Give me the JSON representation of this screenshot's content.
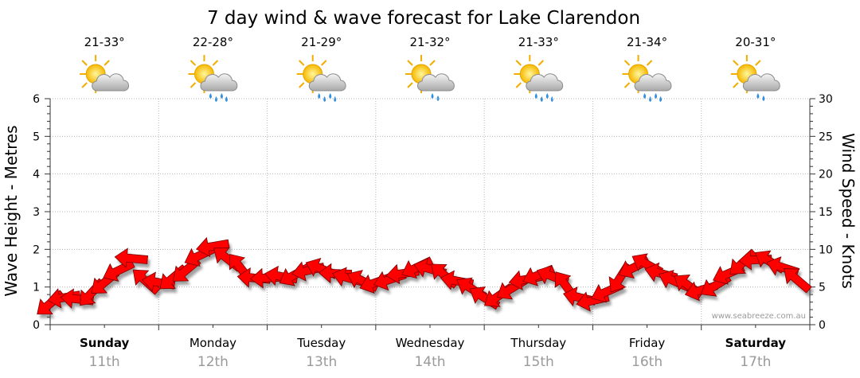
{
  "chart_data": {
    "type": "line",
    "title": "7 day wind & wave forecast for Lake Clarendon",
    "ylabel": "Wave Height - Metres",
    "ylabel_right": "Wind Speed - Knots",
    "ylim": [
      0,
      6
    ],
    "ylim_right": [
      0,
      30
    ],
    "yticks": [
      "0",
      "1",
      "2",
      "3",
      "4",
      "5",
      "6"
    ],
    "yticks_right": [
      "0",
      "5",
      "10",
      "15",
      "20",
      "25",
      "30"
    ],
    "grid": true,
    "credit": "www.seabreeze.com.au",
    "days": [
      {
        "name": "Sunday",
        "date": "11th",
        "temp": "21-33°",
        "bold": true,
        "icon": "sun-cloud-icon"
      },
      {
        "name": "Monday",
        "date": "12th",
        "temp": "22-28°",
        "bold": false,
        "icon": "sun-cloud-rain-icon"
      },
      {
        "name": "Tuesday",
        "date": "13th",
        "temp": "21-29°",
        "bold": false,
        "icon": "sun-cloud-rain-icon"
      },
      {
        "name": "Wednesday",
        "date": "14th",
        "temp": "21-32°",
        "bold": false,
        "icon": "sun-cloud-light-rain-icon"
      },
      {
        "name": "Thursday",
        "date": "15th",
        "temp": "21-33°",
        "bold": false,
        "icon": "sun-cloud-rain-icon"
      },
      {
        "name": "Friday",
        "date": "16th",
        "temp": "21-34°",
        "bold": false,
        "icon": "sun-cloud-rain-icon"
      },
      {
        "name": "Saturday",
        "date": "17th",
        "temp": "20-31°",
        "bold": true,
        "icon": "sun-cloud-light-rain-icon"
      }
    ],
    "series": [
      {
        "name": "Wind Speed",
        "unit": "knots",
        "color": "#ff0000",
        "marker": "direction arrow",
        "x_unit": "days from Sunday 00:00",
        "points": [
          [
            0.0,
            2.8
          ],
          [
            0.13,
            3.6
          ],
          [
            0.25,
            3.4
          ],
          [
            0.38,
            4.2
          ],
          [
            0.5,
            5.6
          ],
          [
            0.63,
            7.2
          ],
          [
            0.75,
            8.8
          ],
          [
            0.88,
            5.8
          ],
          [
            1.0,
            5.6
          ],
          [
            1.13,
            6.2
          ],
          [
            1.25,
            7.2
          ],
          [
            1.38,
            9.2
          ],
          [
            1.5,
            10.4
          ],
          [
            1.63,
            8.8
          ],
          [
            1.75,
            7.6
          ],
          [
            1.88,
            6.2
          ],
          [
            2.0,
            6.2
          ],
          [
            2.13,
            6.4
          ],
          [
            2.25,
            6.6
          ],
          [
            2.38,
            7.2
          ],
          [
            2.5,
            7.4
          ],
          [
            2.63,
            6.8
          ],
          [
            2.75,
            6.2
          ],
          [
            2.88,
            5.8
          ],
          [
            3.0,
            5.6
          ],
          [
            3.13,
            6.0
          ],
          [
            3.25,
            6.8
          ],
          [
            3.38,
            7.6
          ],
          [
            3.5,
            7.4
          ],
          [
            3.63,
            6.6
          ],
          [
            3.75,
            5.8
          ],
          [
            3.88,
            4.8
          ],
          [
            4.0,
            3.6
          ],
          [
            4.13,
            3.8
          ],
          [
            4.25,
            4.8
          ],
          [
            4.38,
            6.0
          ],
          [
            4.5,
            6.6
          ],
          [
            4.63,
            6.4
          ],
          [
            4.75,
            5.2
          ],
          [
            4.88,
            3.6
          ],
          [
            5.0,
            3.2
          ],
          [
            5.13,
            4.4
          ],
          [
            5.25,
            6.2
          ],
          [
            5.38,
            7.6
          ],
          [
            5.5,
            8.0
          ],
          [
            5.63,
            6.8
          ],
          [
            5.75,
            5.8
          ],
          [
            5.88,
            5.2
          ],
          [
            6.0,
            4.6
          ],
          [
            6.13,
            5.2
          ],
          [
            6.25,
            6.8
          ],
          [
            6.38,
            8.2
          ],
          [
            6.5,
            8.6
          ],
          [
            6.63,
            8.4
          ],
          [
            6.75,
            7.6
          ],
          [
            6.88,
            6.0
          ]
        ]
      }
    ]
  }
}
